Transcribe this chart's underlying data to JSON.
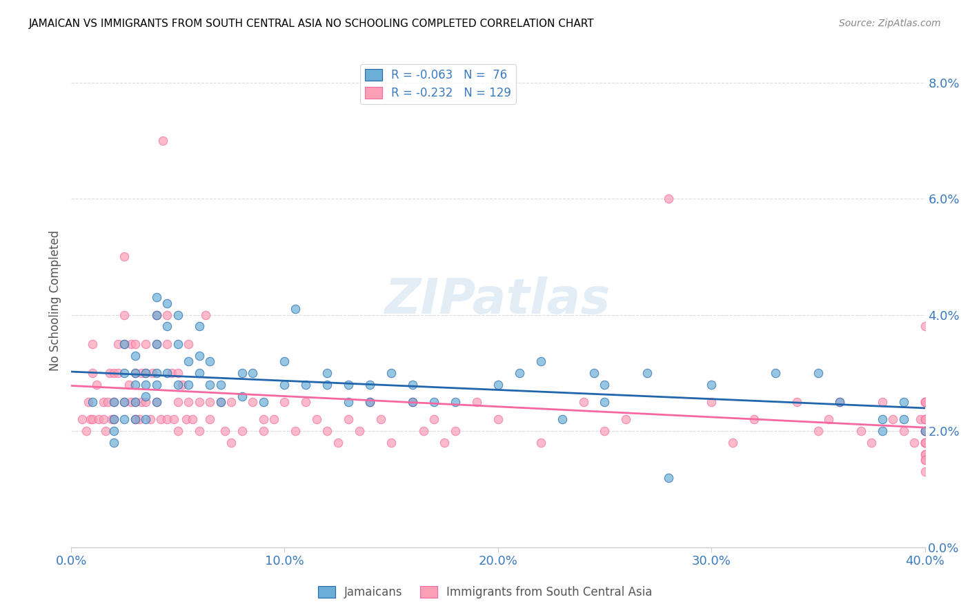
{
  "title": "JAMAICAN VS IMMIGRANTS FROM SOUTH CENTRAL ASIA NO SCHOOLING COMPLETED CORRELATION CHART",
  "source": "Source: ZipAtlas.com",
  "ylabel": "No Schooling Completed",
  "yticks": [
    "0.0%",
    "2.0%",
    "4.0%",
    "6.0%",
    "8.0%"
  ],
  "ytick_vals": [
    0.0,
    0.02,
    0.04,
    0.06,
    0.08
  ],
  "xtick_vals": [
    0.0,
    0.1,
    0.2,
    0.3,
    0.4
  ],
  "xtick_labels": [
    "0.0%",
    "10.0%",
    "20.0%",
    "30.0%",
    "40.0%"
  ],
  "xlim": [
    0.0,
    0.4
  ],
  "ylim": [
    0.0,
    0.085
  ],
  "legend_r1": "R = -0.063",
  "legend_n1": "N =  76",
  "legend_r2": "R = -0.232",
  "legend_n2": "N = 129",
  "color_blue": "#6baed6",
  "color_pink": "#fa9fb5",
  "color_blue_line": "#2166ac",
  "color_pink_line": "#f768a1",
  "color_text": "#3a7abf",
  "watermark": "ZIPatlas",
  "blue_scatter_x": [
    0.01,
    0.02,
    0.02,
    0.02,
    0.02,
    0.025,
    0.025,
    0.025,
    0.025,
    0.03,
    0.03,
    0.03,
    0.03,
    0.03,
    0.035,
    0.035,
    0.035,
    0.035,
    0.04,
    0.04,
    0.04,
    0.04,
    0.04,
    0.04,
    0.045,
    0.045,
    0.045,
    0.05,
    0.05,
    0.05,
    0.055,
    0.055,
    0.06,
    0.06,
    0.06,
    0.065,
    0.065,
    0.07,
    0.07,
    0.08,
    0.08,
    0.085,
    0.09,
    0.1,
    0.1,
    0.105,
    0.11,
    0.12,
    0.12,
    0.13,
    0.13,
    0.14,
    0.14,
    0.15,
    0.16,
    0.16,
    0.17,
    0.18,
    0.2,
    0.21,
    0.22,
    0.23,
    0.245,
    0.25,
    0.25,
    0.27,
    0.28,
    0.3,
    0.33,
    0.35,
    0.36,
    0.38,
    0.38,
    0.39,
    0.39,
    0.4
  ],
  "blue_scatter_y": [
    0.025,
    0.025,
    0.022,
    0.02,
    0.018,
    0.035,
    0.03,
    0.025,
    0.022,
    0.033,
    0.03,
    0.028,
    0.025,
    0.022,
    0.03,
    0.028,
    0.026,
    0.022,
    0.043,
    0.04,
    0.035,
    0.03,
    0.028,
    0.025,
    0.042,
    0.038,
    0.03,
    0.04,
    0.035,
    0.028,
    0.032,
    0.028,
    0.038,
    0.033,
    0.03,
    0.032,
    0.028,
    0.028,
    0.025,
    0.03,
    0.026,
    0.03,
    0.025,
    0.032,
    0.028,
    0.041,
    0.028,
    0.03,
    0.028,
    0.028,
    0.025,
    0.028,
    0.025,
    0.03,
    0.028,
    0.025,
    0.025,
    0.025,
    0.028,
    0.03,
    0.032,
    0.022,
    0.03,
    0.028,
    0.025,
    0.03,
    0.012,
    0.028,
    0.03,
    0.03,
    0.025,
    0.022,
    0.02,
    0.025,
    0.022,
    0.02
  ],
  "pink_scatter_x": [
    0.005,
    0.007,
    0.008,
    0.009,
    0.01,
    0.01,
    0.01,
    0.012,
    0.013,
    0.015,
    0.015,
    0.016,
    0.017,
    0.018,
    0.019,
    0.02,
    0.02,
    0.02,
    0.022,
    0.022,
    0.025,
    0.025,
    0.025,
    0.025,
    0.027,
    0.028,
    0.028,
    0.03,
    0.03,
    0.03,
    0.03,
    0.032,
    0.033,
    0.033,
    0.035,
    0.035,
    0.035,
    0.037,
    0.038,
    0.04,
    0.04,
    0.04,
    0.042,
    0.043,
    0.045,
    0.045,
    0.045,
    0.047,
    0.048,
    0.05,
    0.05,
    0.05,
    0.052,
    0.054,
    0.055,
    0.055,
    0.057,
    0.06,
    0.06,
    0.063,
    0.065,
    0.065,
    0.07,
    0.072,
    0.075,
    0.075,
    0.08,
    0.085,
    0.09,
    0.09,
    0.095,
    0.1,
    0.105,
    0.11,
    0.115,
    0.12,
    0.125,
    0.13,
    0.135,
    0.14,
    0.145,
    0.15,
    0.16,
    0.165,
    0.17,
    0.175,
    0.18,
    0.19,
    0.2,
    0.22,
    0.24,
    0.25,
    0.26,
    0.28,
    0.3,
    0.31,
    0.32,
    0.34,
    0.35,
    0.355,
    0.36,
    0.37,
    0.375,
    0.38,
    0.385,
    0.39,
    0.395,
    0.398,
    0.4,
    0.4,
    0.4,
    0.4,
    0.4,
    0.4,
    0.4,
    0.4,
    0.4,
    0.4,
    0.4,
    0.4,
    0.4,
    0.4,
    0.4,
    0.4,
    0.4,
    0.4,
    0.4,
    0.4,
    0.4
  ],
  "pink_scatter_y": [
    0.022,
    0.02,
    0.025,
    0.022,
    0.035,
    0.03,
    0.022,
    0.028,
    0.022,
    0.025,
    0.022,
    0.02,
    0.025,
    0.03,
    0.022,
    0.03,
    0.025,
    0.022,
    0.035,
    0.03,
    0.05,
    0.04,
    0.035,
    0.025,
    0.028,
    0.035,
    0.025,
    0.035,
    0.03,
    0.025,
    0.022,
    0.022,
    0.03,
    0.025,
    0.035,
    0.03,
    0.025,
    0.022,
    0.03,
    0.04,
    0.035,
    0.025,
    0.022,
    0.07,
    0.04,
    0.035,
    0.022,
    0.03,
    0.022,
    0.03,
    0.025,
    0.02,
    0.028,
    0.022,
    0.035,
    0.025,
    0.022,
    0.025,
    0.02,
    0.04,
    0.025,
    0.022,
    0.025,
    0.02,
    0.025,
    0.018,
    0.02,
    0.025,
    0.022,
    0.02,
    0.022,
    0.025,
    0.02,
    0.025,
    0.022,
    0.02,
    0.018,
    0.022,
    0.02,
    0.025,
    0.022,
    0.018,
    0.025,
    0.02,
    0.022,
    0.018,
    0.02,
    0.025,
    0.022,
    0.018,
    0.025,
    0.02,
    0.022,
    0.06,
    0.025,
    0.018,
    0.022,
    0.025,
    0.02,
    0.022,
    0.025,
    0.02,
    0.018,
    0.025,
    0.022,
    0.02,
    0.018,
    0.022,
    0.038,
    0.025,
    0.02,
    0.022,
    0.018,
    0.025,
    0.02,
    0.022,
    0.018,
    0.025,
    0.02,
    0.022,
    0.018,
    0.016,
    0.015,
    0.02,
    0.018,
    0.016,
    0.025,
    0.015,
    0.013
  ]
}
